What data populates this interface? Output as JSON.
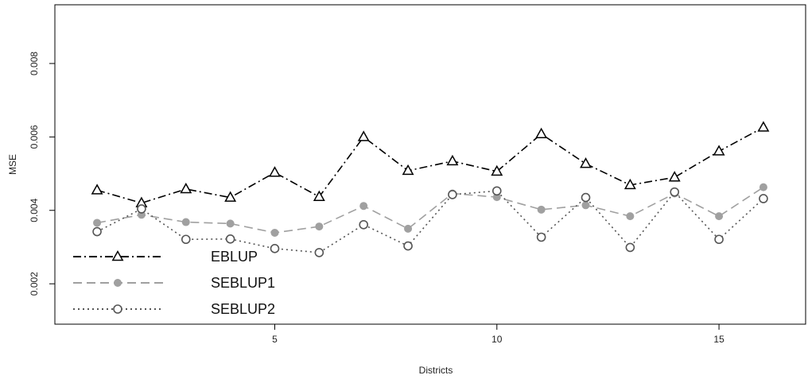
{
  "chart_data": {
    "type": "line",
    "title": "",
    "xlabel": "Districts",
    "ylabel": "MSE",
    "x": [
      1,
      2,
      3,
      4,
      5,
      6,
      7,
      8,
      9,
      10,
      11,
      12,
      13,
      14,
      15,
      16
    ],
    "xlim": [
      0.05,
      16.95
    ],
    "ylim": [
      0.0009,
      0.0096
    ],
    "x_ticks": [
      5,
      10,
      15
    ],
    "y_ticks": [
      0.002,
      0.004,
      0.006,
      0.008
    ],
    "x_tick_labels": [
      "5",
      "10",
      "15"
    ],
    "y_tick_labels": [
      "0.002",
      "0.004",
      "0.006",
      "0.008"
    ],
    "grid": false,
    "legend_position": "bottom-left",
    "series": [
      {
        "name": "EBLUP",
        "color": "#000000",
        "line_style": "dash-dot",
        "marker": "open-triangle",
        "values": [
          0.00455,
          0.0042,
          0.00458,
          0.00435,
          0.00503,
          0.00437,
          0.006,
          0.00508,
          0.00534,
          0.00506,
          0.00608,
          0.00527,
          0.00469,
          0.0049,
          0.00561,
          0.00626
        ]
      },
      {
        "name": "SEBLUP1",
        "color": "#a0a0a0",
        "line_style": "dashed",
        "marker": "filled-circle",
        "values": [
          0.00366,
          0.00388,
          0.00368,
          0.00364,
          0.00339,
          0.00356,
          0.00412,
          0.0035,
          0.00446,
          0.00436,
          0.00402,
          0.00414,
          0.00384,
          0.00446,
          0.00384,
          0.00463
        ]
      },
      {
        "name": "SEBLUP2",
        "color": "#555555",
        "line_style": "dotted",
        "marker": "open-circle",
        "values": [
          0.00342,
          0.00404,
          0.00321,
          0.00322,
          0.00296,
          0.00285,
          0.00361,
          0.00303,
          0.00443,
          0.00453,
          0.00327,
          0.00435,
          0.00299,
          0.0045,
          0.00321,
          0.00432
        ]
      }
    ]
  }
}
